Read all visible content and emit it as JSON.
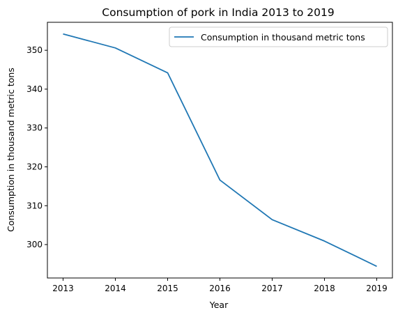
{
  "chart_data": {
    "type": "line",
    "title": "Consumption of pork in India 2013 to 2019",
    "xlabel": "Year",
    "ylabel": "Consumption in thousand metric tons",
    "x": [
      2013,
      2014,
      2015,
      2016,
      2017,
      2018,
      2019
    ],
    "series": [
      {
        "name": "Consumption in thousand metric tons",
        "values": [
          354.2,
          350.6,
          344.2,
          316.6,
          306.4,
          300.9,
          294.4
        ],
        "color": "#1f77b4"
      }
    ],
    "xticks": [
      "2013",
      "2014",
      "2015",
      "2016",
      "2017",
      "2018",
      "2019"
    ],
    "yticks": [
      "300",
      "310",
      "320",
      "330",
      "340",
      "350"
    ],
    "ylim": [
      291.4,
      357.2
    ],
    "xlim": [
      2012.7,
      2019.3
    ],
    "grid": false,
    "legend": "top-right"
  }
}
